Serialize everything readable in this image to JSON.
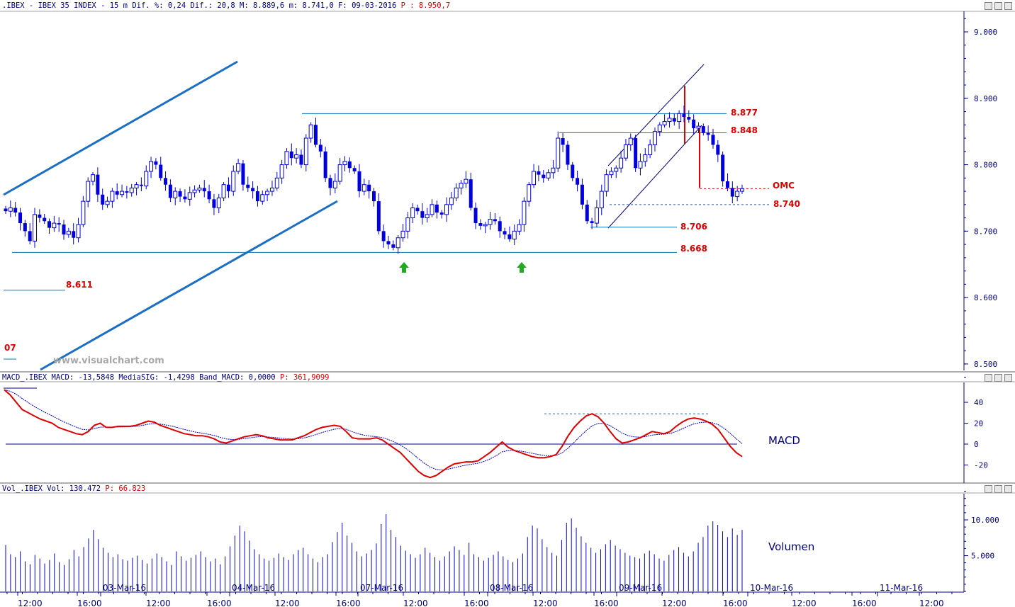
{
  "header": {
    "price_info": ".IBEX - IBEX 35 INDEX -  15 m Dif. %: 0,24 Dif.: 20,8 M: 8.889,6 m: 8.741,0 F: 09-03-2016",
    "price_extra": "P : 8.950,7",
    "macd_info": "MACD_.IBEX MACD: -13,5848 MediaSIG: -1,4298 Band_MACD: 0,0000",
    "macd_extra": "P: 361,9099",
    "vol_info": "Vol_.IBEX Vol: 130.472",
    "vol_extra": "P: 66.823"
  },
  "watermark": "www.visualchart.com",
  "panel_labels": {
    "macd": "MACD",
    "volume": "Volumen"
  },
  "colors": {
    "candle": "#0000dd",
    "axis_text": "#000080",
    "red_label": "#dd0000",
    "macd_line": "#dd0000",
    "signal_line": "#0000cc",
    "trendline": "#1a6fc4",
    "level_line": "#0a7ab5",
    "arrow": "#22aa22"
  },
  "chart_data": [
    {
      "type": "candlestick",
      "title": "",
      "ylim": [
        8480,
        9030
      ],
      "y_ticks": [
        "9.000",
        "8.900",
        "8.800",
        "8.700",
        "8.600",
        "8.500"
      ],
      "y_tick_values": [
        9000,
        8900,
        8800,
        8700,
        8600,
        8500
      ],
      "level_labels": [
        {
          "label": "8.877",
          "value": 8877
        },
        {
          "label": "8.848",
          "value": 8848
        },
        {
          "label": "8.706",
          "value": 8706
        },
        {
          "label": "8.668",
          "value": 8668
        },
        {
          "label": "8.611",
          "value": 8611
        },
        {
          "label": "8.740",
          "value": 8740
        },
        {
          "label": "OMC",
          "value": 8764
        },
        {
          "label": "07",
          "value": 8535
        }
      ],
      "candle_closes": [
        8730,
        8735,
        8728,
        8712,
        8700,
        8685,
        8725,
        8720,
        8715,
        8705,
        8712,
        8710,
        8695,
        8700,
        8690,
        8710,
        8745,
        8775,
        8785,
        8755,
        8740,
        8745,
        8760,
        8755,
        8760,
        8758,
        8765,
        8770,
        8768,
        8790,
        8805,
        8800,
        8780,
        8770,
        8750,
        8760,
        8752,
        8748,
        8758,
        8762,
        8765,
        8760,
        8748,
        8735,
        8750,
        8770,
        8760,
        8790,
        8802,
        8770,
        8765,
        8760,
        8745,
        8755,
        8760,
        8765,
        8780,
        8800,
        8820,
        8810,
        8815,
        8800,
        8840,
        8860,
        8830,
        8820,
        8780,
        8765,
        8775,
        8800,
        8805,
        8795,
        8790,
        8760,
        8770,
        8760,
        8745,
        8700,
        8685,
        8680,
        8675,
        8690,
        8700,
        8720,
        8735,
        8730,
        8720,
        8725,
        8740,
        8728,
        8725,
        8740,
        8750,
        8765,
        8772,
        8778,
        8735,
        8712,
        8708,
        8710,
        8718,
        8715,
        8700,
        8695,
        8688,
        8700,
        8710,
        8745,
        8770,
        8790,
        8785,
        8780,
        8788,
        8795,
        8840,
        8830,
        8800,
        8780,
        8770,
        8740,
        8715,
        8712,
        8735,
        8760,
        8785,
        8790,
        8795,
        8810,
        8830,
        8840,
        8795,
        8805,
        8815,
        8830,
        8850,
        8860,
        8865,
        8870,
        8865,
        8877,
        8872,
        8868,
        8855,
        8858,
        8848,
        8845,
        8830,
        8815,
        8775,
        8765,
        8752,
        8760,
        8764
      ],
      "candle_dates": [
        "03-Mar-16",
        "04-Mar-16",
        "07-Mar-16",
        "08-Mar-16",
        "09-Mar-16",
        "10-Mar-16",
        "11-Mar-16"
      ],
      "time_ticks": [
        "12:00",
        "16:00",
        "12:00",
        "16:00",
        "12:00",
        "16:00",
        "12:00",
        "16:00",
        "12:00",
        "16:00",
        "12:00",
        "16:00",
        "12:00",
        "16:00",
        "12:00"
      ]
    },
    {
      "type": "line",
      "title": "",
      "ylim": [
        -38,
        58
      ],
      "y_ticks": [
        "40",
        "20",
        "0",
        "-20"
      ],
      "y_tick_values": [
        40,
        20,
        0,
        -20
      ],
      "series": [
        {
          "name": "MACD",
          "values": [
            52,
            47,
            40,
            33,
            30,
            27,
            24,
            22,
            20,
            16,
            14,
            12,
            10,
            9,
            12,
            18,
            20,
            16,
            16,
            17,
            17,
            17,
            18,
            20,
            22,
            21,
            18,
            16,
            14,
            12,
            10,
            9,
            8,
            8,
            7,
            5,
            2,
            1,
            3,
            5,
            7,
            8,
            9,
            8,
            6,
            5,
            4,
            4,
            4,
            6,
            8,
            11,
            14,
            16,
            17,
            18,
            17,
            12,
            6,
            5,
            5,
            5,
            6,
            4,
            0,
            -4,
            -8,
            -14,
            -20,
            -26,
            -30,
            -32,
            -30,
            -26,
            -22,
            -19,
            -18,
            -17,
            -17,
            -16,
            -12,
            -8,
            -3,
            2,
            -3,
            -6,
            -8,
            -10,
            -12,
            -13,
            -13,
            -12,
            -10,
            -2,
            8,
            16,
            22,
            27,
            29,
            26,
            20,
            12,
            5,
            1,
            2,
            4,
            6,
            9,
            12,
            11,
            10,
            12,
            17,
            21,
            24,
            25,
            24,
            22,
            19,
            14,
            6,
            -2,
            -8,
            -12
          ]
        }
      ]
    },
    {
      "type": "bar",
      "title": "",
      "ylim": [
        0,
        14000
      ],
      "y_ticks": [
        "10.000",
        "5.000"
      ],
      "y_tick_values": [
        10000,
        5000
      ],
      "values": [
        6500,
        5200,
        4800,
        5600,
        4200,
        3800,
        5100,
        4600,
        3900,
        4400,
        5300,
        4100,
        3700,
        4500,
        5800,
        4900,
        6200,
        7400,
        8600,
        7300,
        6100,
        5400,
        4800,
        5200,
        4500,
        4300,
        4700,
        5000,
        4400,
        3900,
        4600,
        5300,
        4800,
        4200,
        3700,
        5600,
        4900,
        4300,
        4700,
        5100,
        5600,
        4800,
        4200,
        4600,
        3800,
        4900,
        6300,
        7800,
        9200,
        8400,
        7100,
        5900,
        5200,
        4600,
        4300,
        4700,
        5300,
        4800,
        4400,
        5200,
        5800,
        6100,
        5200,
        4600,
        4100,
        4800,
        5200,
        6900,
        8300,
        9600,
        7800,
        6800,
        5600,
        4900,
        5300,
        5800,
        6700,
        9400,
        10800,
        8600,
        7600,
        6400,
        5700,
        5200,
        4700,
        5200,
        6100,
        5400,
        4800,
        4300,
        4900,
        5600,
        6300,
        5800,
        5100,
        6800,
        5200,
        4800,
        4300,
        4700,
        5100,
        5600,
        4900,
        4400,
        4100,
        4600,
        5300,
        7600,
        9200,
        8800,
        7300,
        6200,
        5400,
        5000,
        7200,
        9600,
        10200,
        8900,
        7700,
        6800,
        6100,
        5400,
        5900,
        6600,
        7200,
        6400,
        5900,
        5400,
        5000,
        4800,
        4600,
        5300,
        5700,
        5200,
        4600,
        4300,
        5100,
        5800,
        6200,
        5400,
        4900,
        5600,
        6800,
        7600,
        9200,
        9800,
        9300,
        8400,
        7600,
        8800,
        7900,
        8600
      ]
    }
  ]
}
